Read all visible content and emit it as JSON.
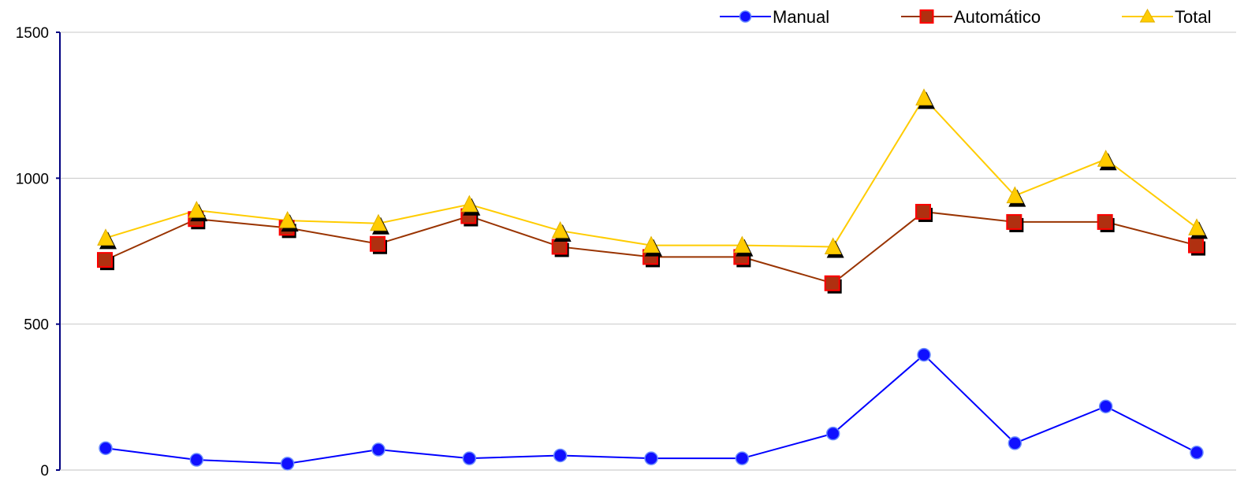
{
  "chart_data": {
    "type": "line",
    "x": [
      "",
      "",
      "",
      "",
      "",
      "",
      "",
      "",
      "",
      "",
      "",
      "",
      ""
    ],
    "ylim": [
      0,
      1500
    ],
    "yticks": [
      "0",
      "500",
      "1000",
      "1500"
    ],
    "grid": true,
    "legend_position": "top-right",
    "series": [
      {
        "name": "Manual",
        "color": "#0000ff",
        "marker": "circle",
        "values": [
          75,
          35,
          22,
          70,
          40,
          50,
          40,
          40,
          125,
          395,
          92,
          218,
          60
        ]
      },
      {
        "name": "Automático",
        "color": "#993300",
        "marker_fill": "#b03010",
        "marker_edge": "#ff0000",
        "marker": "square",
        "values": [
          720,
          860,
          830,
          775,
          870,
          765,
          730,
          730,
          640,
          885,
          850,
          850,
          770
        ]
      },
      {
        "name": "Total",
        "color": "#ffcc00",
        "marker": "triangle",
        "values": [
          795,
          890,
          855,
          845,
          910,
          820,
          770,
          770,
          765,
          1275,
          940,
          1065,
          830
        ]
      }
    ]
  }
}
